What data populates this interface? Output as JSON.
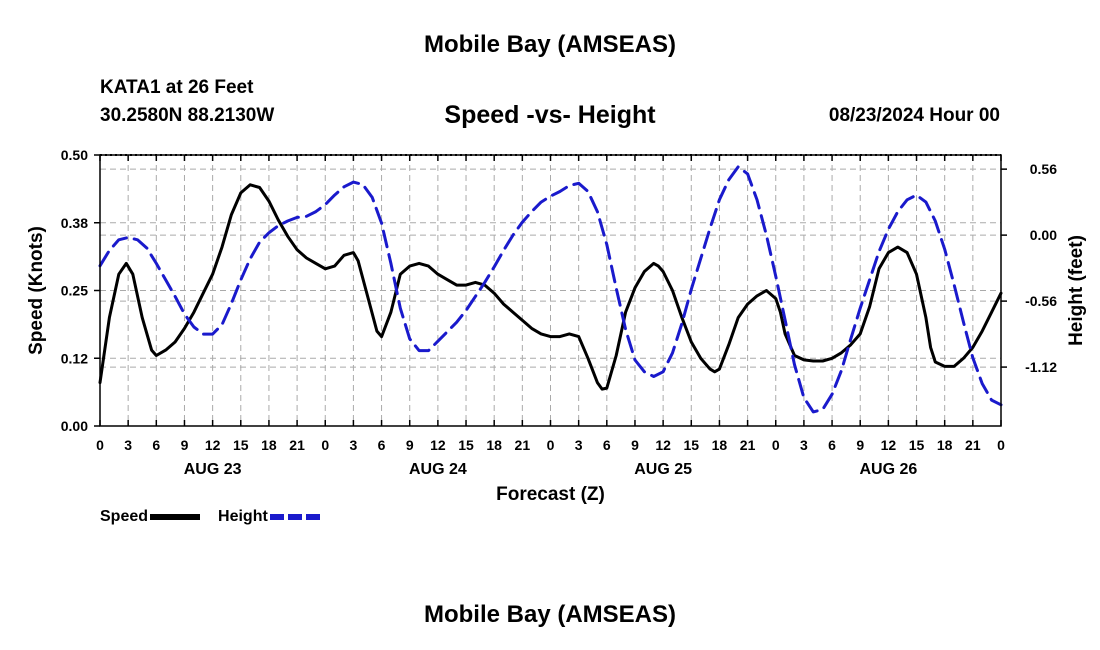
{
  "header": {
    "title": "Mobile Bay (AMSEAS)",
    "station": "KATA1 at 26 Feet",
    "coords": "30.2580N  88.2130W",
    "subtitle": "Speed -vs- Height",
    "run": "08/23/2024 Hour 00"
  },
  "footer": {
    "title": "Mobile Bay (AMSEAS)"
  },
  "legend": {
    "speed_label": "Speed",
    "height_label": "Height"
  },
  "colors": {
    "speed": "#000000",
    "height": "#1a1acc",
    "grid": "#aaaaaa"
  },
  "chart_data": {
    "type": "line",
    "title": "Speed -vs- Height",
    "xlabel": "Forecast (Z)",
    "ylabel": "Speed (Knots)",
    "y2label": "Height (feet)",
    "x_unit": "forecast hour",
    "xlim": [
      0,
      96
    ],
    "ylim": [
      0,
      0.5
    ],
    "y2lim": [
      -1.62,
      0.68
    ],
    "x_ticks": [
      0,
      3,
      6,
      9,
      12,
      15,
      18,
      21,
      24,
      27,
      30,
      33,
      36,
      39,
      42,
      45,
      48,
      51,
      54,
      57,
      60,
      63,
      66,
      69,
      72,
      75,
      78,
      81,
      84,
      87,
      90,
      93,
      96
    ],
    "x_tick_labels": [
      "0",
      "3",
      "6",
      "9",
      "12",
      "15",
      "18",
      "21",
      "0",
      "3",
      "6",
      "9",
      "12",
      "15",
      "18",
      "21",
      "0",
      "3",
      "6",
      "9",
      "12",
      "15",
      "18",
      "21",
      "0",
      "3",
      "6",
      "9",
      "12",
      "15",
      "18",
      "21",
      "0"
    ],
    "date_labels": [
      {
        "x": 12,
        "label": "AUG 23"
      },
      {
        "x": 36,
        "label": "AUG 24"
      },
      {
        "x": 60,
        "label": "AUG 25"
      },
      {
        "x": 84,
        "label": "AUG 26"
      }
    ],
    "y_ticks": [
      0.0,
      0.125,
      0.25,
      0.375,
      0.5
    ],
    "y_tick_labels": [
      "0.00",
      "0.12",
      "0.25",
      "0.38",
      "0.50"
    ],
    "y2_ticks": [
      0.56,
      0.0,
      -0.56,
      -1.12
    ],
    "y2_tick_labels": [
      "0.56",
      "0.00",
      "-0.56",
      "-1.12"
    ],
    "grid": true,
    "legend_position": "bottom-left",
    "series": [
      {
        "name": "Speed",
        "axis": "left",
        "style": "solid",
        "points": [
          [
            0,
            0.08
          ],
          [
            1,
            0.2
          ],
          [
            2,
            0.28
          ],
          [
            2.8,
            0.3
          ],
          [
            3.5,
            0.28
          ],
          [
            4.5,
            0.2
          ],
          [
            5.5,
            0.14
          ],
          [
            6,
            0.13
          ],
          [
            7,
            0.14
          ],
          [
            8,
            0.155
          ],
          [
            9,
            0.18
          ],
          [
            10,
            0.21
          ],
          [
            11,
            0.245
          ],
          [
            12,
            0.28
          ],
          [
            13,
            0.33
          ],
          [
            14,
            0.39
          ],
          [
            15,
            0.43
          ],
          [
            16,
            0.445
          ],
          [
            17,
            0.44
          ],
          [
            18,
            0.415
          ],
          [
            19,
            0.38
          ],
          [
            20,
            0.35
          ],
          [
            21,
            0.325
          ],
          [
            22,
            0.31
          ],
          [
            23,
            0.3
          ],
          [
            24,
            0.29
          ],
          [
            25,
            0.295
          ],
          [
            26,
            0.315
          ],
          [
            27,
            0.32
          ],
          [
            27.5,
            0.305
          ],
          [
            28.5,
            0.24
          ],
          [
            29.5,
            0.175
          ],
          [
            30,
            0.165
          ],
          [
            31,
            0.21
          ],
          [
            32,
            0.28
          ],
          [
            33,
            0.295
          ],
          [
            34,
            0.3
          ],
          [
            35,
            0.295
          ],
          [
            36,
            0.28
          ],
          [
            37,
            0.27
          ],
          [
            38,
            0.26
          ],
          [
            39,
            0.26
          ],
          [
            40,
            0.265
          ],
          [
            41,
            0.26
          ],
          [
            42,
            0.245
          ],
          [
            43,
            0.225
          ],
          [
            44,
            0.21
          ],
          [
            45,
            0.195
          ],
          [
            46,
            0.18
          ],
          [
            47,
            0.17
          ],
          [
            48,
            0.165
          ],
          [
            49,
            0.165
          ],
          [
            50,
            0.17
          ],
          [
            51,
            0.165
          ],
          [
            52,
            0.125
          ],
          [
            53,
            0.08
          ],
          [
            53.5,
            0.068
          ],
          [
            54,
            0.07
          ],
          [
            55,
            0.13
          ],
          [
            56,
            0.21
          ],
          [
            57,
            0.255
          ],
          [
            58,
            0.285
          ],
          [
            59,
            0.3
          ],
          [
            59.5,
            0.295
          ],
          [
            60,
            0.285
          ],
          [
            61,
            0.25
          ],
          [
            62,
            0.2
          ],
          [
            63,
            0.155
          ],
          [
            64,
            0.125
          ],
          [
            65,
            0.105
          ],
          [
            65.5,
            0.1
          ],
          [
            66,
            0.105
          ],
          [
            67,
            0.15
          ],
          [
            68,
            0.2
          ],
          [
            69,
            0.225
          ],
          [
            70,
            0.24
          ],
          [
            71,
            0.25
          ],
          [
            72,
            0.235
          ],
          [
            72.5,
            0.21
          ],
          [
            73,
            0.17
          ],
          [
            74,
            0.13
          ],
          [
            75,
            0.122
          ],
          [
            76,
            0.12
          ],
          [
            77,
            0.12
          ],
          [
            78,
            0.125
          ],
          [
            79,
            0.135
          ],
          [
            80,
            0.15
          ],
          [
            81,
            0.17
          ],
          [
            82,
            0.22
          ],
          [
            83,
            0.29
          ],
          [
            84,
            0.32
          ],
          [
            85,
            0.33
          ],
          [
            86,
            0.32
          ],
          [
            87,
            0.28
          ],
          [
            88,
            0.2
          ],
          [
            88.5,
            0.145
          ],
          [
            89,
            0.118
          ],
          [
            90,
            0.11
          ],
          [
            91,
            0.11
          ],
          [
            92,
            0.125
          ],
          [
            93,
            0.145
          ],
          [
            94,
            0.175
          ],
          [
            95,
            0.21
          ],
          [
            96,
            0.245
          ]
        ]
      },
      {
        "name": "Height",
        "axis": "right",
        "style": "dashed",
        "points": [
          [
            0,
            -0.26
          ],
          [
            1,
            -0.13
          ],
          [
            2,
            -0.04
          ],
          [
            3,
            -0.02
          ],
          [
            4,
            -0.04
          ],
          [
            5,
            -0.11
          ],
          [
            6,
            -0.24
          ],
          [
            7,
            -0.38
          ],
          [
            8,
            -0.52
          ],
          [
            9,
            -0.67
          ],
          [
            10,
            -0.78
          ],
          [
            11,
            -0.84
          ],
          [
            12,
            -0.84
          ],
          [
            13,
            -0.76
          ],
          [
            14,
            -0.58
          ],
          [
            15,
            -0.38
          ],
          [
            16,
            -0.2
          ],
          [
            17,
            -0.06
          ],
          [
            18,
            0.02
          ],
          [
            19,
            0.08
          ],
          [
            20,
            0.12
          ],
          [
            21,
            0.15
          ],
          [
            22,
            0.16
          ],
          [
            23,
            0.2
          ],
          [
            24,
            0.26
          ],
          [
            25,
            0.34
          ],
          [
            26,
            0.41
          ],
          [
            27,
            0.45
          ],
          [
            28,
            0.43
          ],
          [
            29,
            0.32
          ],
          [
            30,
            0.1
          ],
          [
            31,
            -0.24
          ],
          [
            32,
            -0.62
          ],
          [
            33,
            -0.88
          ],
          [
            34,
            -0.98
          ],
          [
            35,
            -0.98
          ],
          [
            36,
            -0.9
          ],
          [
            37,
            -0.82
          ],
          [
            38,
            -0.74
          ],
          [
            39,
            -0.64
          ],
          [
            40,
            -0.52
          ],
          [
            41,
            -0.4
          ],
          [
            42,
            -0.27
          ],
          [
            43,
            -0.13
          ],
          [
            44,
            0.0
          ],
          [
            45,
            0.11
          ],
          [
            46,
            0.2
          ],
          [
            47,
            0.28
          ],
          [
            48,
            0.33
          ],
          [
            49,
            0.37
          ],
          [
            50,
            0.42
          ],
          [
            51,
            0.44
          ],
          [
            52,
            0.37
          ],
          [
            53,
            0.2
          ],
          [
            54,
            -0.08
          ],
          [
            55,
            -0.45
          ],
          [
            56,
            -0.8
          ],
          [
            57,
            -1.06
          ],
          [
            58,
            -1.16
          ],
          [
            59,
            -1.2
          ],
          [
            60,
            -1.16
          ],
          [
            61,
            -1.0
          ],
          [
            62,
            -0.75
          ],
          [
            63,
            -0.46
          ],
          [
            64,
            -0.2
          ],
          [
            65,
            0.06
          ],
          [
            66,
            0.3
          ],
          [
            67,
            0.47
          ],
          [
            68,
            0.58
          ],
          [
            69,
            0.52
          ],
          [
            70,
            0.3
          ],
          [
            71,
            0.0
          ],
          [
            72,
            -0.35
          ],
          [
            73,
            -0.72
          ],
          [
            74,
            -1.1
          ],
          [
            75,
            -1.38
          ],
          [
            76,
            -1.5
          ],
          [
            77,
            -1.48
          ],
          [
            78,
            -1.35
          ],
          [
            79,
            -1.15
          ],
          [
            80,
            -0.88
          ],
          [
            81,
            -0.62
          ],
          [
            82,
            -0.38
          ],
          [
            83,
            -0.14
          ],
          [
            84,
            0.05
          ],
          [
            85,
            0.2
          ],
          [
            86,
            0.3
          ],
          [
            87,
            0.34
          ],
          [
            88,
            0.28
          ],
          [
            89,
            0.12
          ],
          [
            90,
            -0.12
          ],
          [
            91,
            -0.42
          ],
          [
            92,
            -0.74
          ],
          [
            93,
            -1.04
          ],
          [
            94,
            -1.26
          ],
          [
            95,
            -1.4
          ],
          [
            96,
            -1.44
          ]
        ]
      }
    ]
  }
}
